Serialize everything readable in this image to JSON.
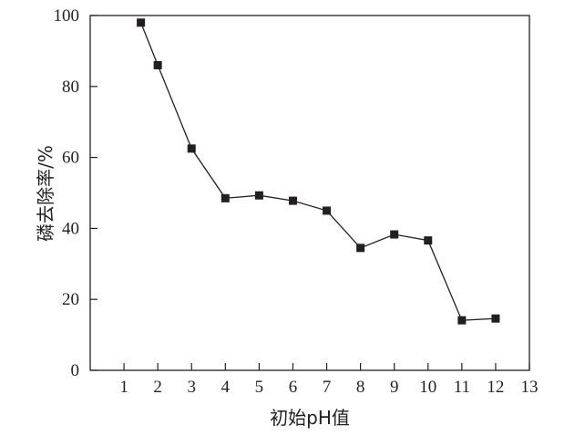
{
  "chart_data": {
    "type": "line",
    "xlabel": "初始pH值",
    "ylabel": "磷去除率/%",
    "xlim": [
      0,
      13
    ],
    "ylim": [
      0,
      100
    ],
    "xticks": [
      1,
      2,
      3,
      4,
      5,
      6,
      7,
      8,
      9,
      10,
      11,
      12,
      13
    ],
    "yticks": [
      0,
      20,
      40,
      60,
      80,
      100
    ],
    "x": [
      1.5,
      2,
      3,
      4,
      5,
      6,
      7,
      8,
      9,
      10,
      11,
      12
    ],
    "y": [
      98,
      86,
      62.5,
      48.5,
      49.3,
      47.8,
      45,
      34.5,
      38.3,
      36.6,
      14.1,
      14.6
    ],
    "grid": false,
    "marker": "square",
    "colors": {
      "line": "#231f20",
      "marker": "#231f20"
    }
  }
}
